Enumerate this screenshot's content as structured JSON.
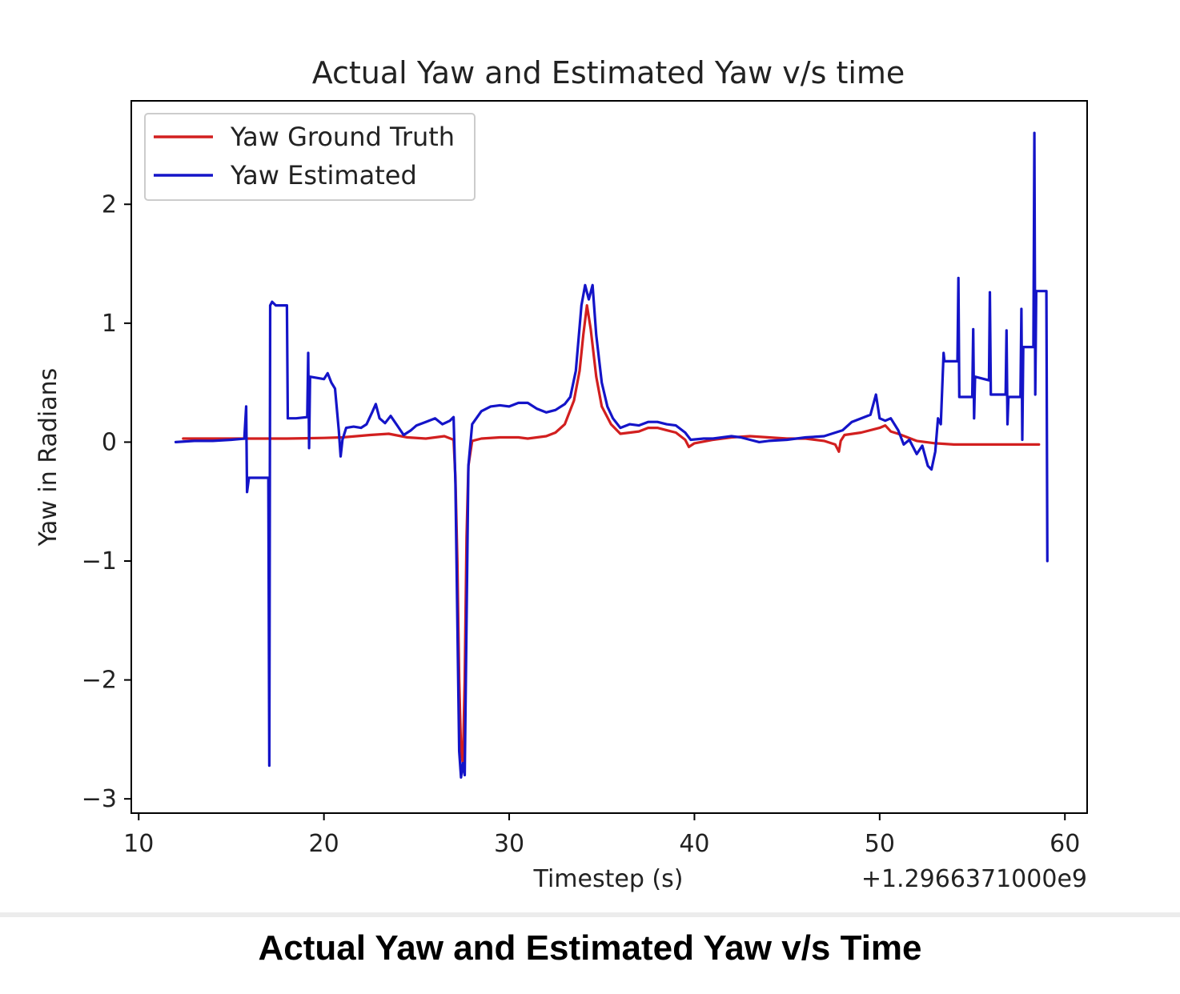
{
  "caption": "Actual Yaw and Estimated Yaw v/s Time",
  "chart_data": {
    "type": "line",
    "title": "Actual Yaw and Estimated Yaw v/s time",
    "xlabel": "Timestep (s)",
    "ylabel": "Yaw in Radians",
    "x_offset_label": "+1.2966371000e9",
    "xlim": [
      9.6,
      61.2
    ],
    "ylim": [
      -3.12,
      2.87
    ],
    "xticks": [
      10,
      20,
      30,
      40,
      50,
      60
    ],
    "yticks": [
      -3,
      -2,
      -1,
      0,
      1,
      2
    ],
    "xtick_labels": [
      "10",
      "20",
      "30",
      "40",
      "50",
      "60"
    ],
    "ytick_labels": [
      "−3",
      "−2",
      "−1",
      "0",
      "1",
      "2"
    ],
    "grid": false,
    "legend_position": "top-left",
    "series": [
      {
        "name": "Yaw Ground Truth",
        "color": "#d21f1f",
        "points": [
          [
            12.4,
            0.03
          ],
          [
            14,
            0.03
          ],
          [
            16,
            0.03
          ],
          [
            18,
            0.03
          ],
          [
            20,
            0.035
          ],
          [
            21,
            0.04
          ],
          [
            22.5,
            0.06
          ],
          [
            23.5,
            0.07
          ],
          [
            24.5,
            0.04
          ],
          [
            25.5,
            0.03
          ],
          [
            26.5,
            0.05
          ],
          [
            27,
            0.02
          ],
          [
            27.1,
            -0.3
          ],
          [
            27.2,
            -1.0
          ],
          [
            27.3,
            -2.0
          ],
          [
            27.4,
            -2.6
          ],
          [
            27.5,
            -2.7
          ],
          [
            27.6,
            -2.0
          ],
          [
            27.7,
            -0.8
          ],
          [
            27.8,
            -0.2
          ],
          [
            28,
            0.01
          ],
          [
            28.5,
            0.03
          ],
          [
            29.5,
            0.04
          ],
          [
            30.5,
            0.04
          ],
          [
            31,
            0.03
          ],
          [
            32,
            0.05
          ],
          [
            32.5,
            0.08
          ],
          [
            33,
            0.15
          ],
          [
            33.5,
            0.35
          ],
          [
            33.8,
            0.6
          ],
          [
            34,
            0.9
          ],
          [
            34.2,
            1.15
          ],
          [
            34.4,
            0.95
          ],
          [
            34.7,
            0.55
          ],
          [
            35,
            0.3
          ],
          [
            35.5,
            0.15
          ],
          [
            36,
            0.07
          ],
          [
            37,
            0.09
          ],
          [
            37.5,
            0.12
          ],
          [
            38,
            0.12
          ],
          [
            38.5,
            0.1
          ],
          [
            39,
            0.08
          ],
          [
            39.5,
            0.02
          ],
          [
            39.7,
            -0.04
          ],
          [
            40,
            -0.01
          ],
          [
            41,
            0.02
          ],
          [
            42,
            0.04
          ],
          [
            43,
            0.05
          ],
          [
            44,
            0.04
          ],
          [
            45,
            0.03
          ],
          [
            46,
            0.03
          ],
          [
            47,
            0.01
          ],
          [
            47.6,
            -0.02
          ],
          [
            47.8,
            -0.08
          ],
          [
            47.9,
            0.01
          ],
          [
            48.1,
            0.06
          ],
          [
            49,
            0.08
          ],
          [
            50,
            0.12
          ],
          [
            50.3,
            0.14
          ],
          [
            50.6,
            0.09
          ],
          [
            51,
            0.07
          ],
          [
            52,
            0.01
          ],
          [
            53,
            -0.01
          ],
          [
            54,
            -0.02
          ],
          [
            56,
            -0.02
          ],
          [
            58,
            -0.02
          ],
          [
            58.6,
            -0.02
          ]
        ]
      },
      {
        "name": "Yaw Estimated",
        "color": "#1414c8",
        "points": [
          [
            12,
            0.0
          ],
          [
            13,
            0.01
          ],
          [
            14,
            0.01
          ],
          [
            15,
            0.02
          ],
          [
            15.7,
            0.03
          ],
          [
            15.8,
            0.3
          ],
          [
            15.85,
            -0.42
          ],
          [
            15.95,
            -0.3
          ],
          [
            17,
            -0.3
          ],
          [
            17.05,
            -2.72
          ],
          [
            17.1,
            1.15
          ],
          [
            17.2,
            1.18
          ],
          [
            17.4,
            1.15
          ],
          [
            18,
            1.15
          ],
          [
            18.05,
            0.2
          ],
          [
            18.5,
            0.2
          ],
          [
            19.1,
            0.21
          ],
          [
            19.15,
            0.75
          ],
          [
            19.2,
            -0.05
          ],
          [
            19.25,
            0.55
          ],
          [
            20,
            0.53
          ],
          [
            20.2,
            0.58
          ],
          [
            20.4,
            0.5
          ],
          [
            20.6,
            0.45
          ],
          [
            20.8,
            0.1
          ],
          [
            20.9,
            -0.12
          ],
          [
            21,
            0.02
          ],
          [
            21.2,
            0.12
          ],
          [
            21.6,
            0.13
          ],
          [
            22,
            0.12
          ],
          [
            22.3,
            0.15
          ],
          [
            22.6,
            0.25
          ],
          [
            22.8,
            0.32
          ],
          [
            23,
            0.2
          ],
          [
            23.3,
            0.16
          ],
          [
            23.6,
            0.22
          ],
          [
            24,
            0.13
          ],
          [
            24.3,
            0.06
          ],
          [
            24.7,
            0.1
          ],
          [
            25,
            0.14
          ],
          [
            25.5,
            0.17
          ],
          [
            26,
            0.2
          ],
          [
            26.4,
            0.15
          ],
          [
            26.8,
            0.18
          ],
          [
            27,
            0.21
          ],
          [
            27.1,
            -0.35
          ],
          [
            27.2,
            -1.5
          ],
          [
            27.3,
            -2.6
          ],
          [
            27.4,
            -2.82
          ],
          [
            27.5,
            -2.7
          ],
          [
            27.6,
            -2.8
          ],
          [
            27.7,
            -1.5
          ],
          [
            27.8,
            -0.2
          ],
          [
            28,
            0.15
          ],
          [
            28.5,
            0.26
          ],
          [
            29,
            0.3
          ],
          [
            29.5,
            0.31
          ],
          [
            30,
            0.3
          ],
          [
            30.5,
            0.33
          ],
          [
            31,
            0.33
          ],
          [
            31.5,
            0.28
          ],
          [
            32,
            0.25
          ],
          [
            32.5,
            0.27
          ],
          [
            33,
            0.32
          ],
          [
            33.3,
            0.38
          ],
          [
            33.6,
            0.6
          ],
          [
            33.9,
            1.15
          ],
          [
            34.1,
            1.32
          ],
          [
            34.3,
            1.2
          ],
          [
            34.5,
            1.32
          ],
          [
            34.7,
            0.9
          ],
          [
            35,
            0.5
          ],
          [
            35.3,
            0.3
          ],
          [
            35.6,
            0.2
          ],
          [
            36,
            0.12
          ],
          [
            36.5,
            0.15
          ],
          [
            37,
            0.14
          ],
          [
            37.5,
            0.17
          ],
          [
            38,
            0.17
          ],
          [
            38.5,
            0.15
          ],
          [
            39,
            0.14
          ],
          [
            39.5,
            0.08
          ],
          [
            39.8,
            0.02
          ],
          [
            40.5,
            0.03
          ],
          [
            41,
            0.03
          ],
          [
            42,
            0.05
          ],
          [
            42.5,
            0.04
          ],
          [
            43,
            0.02
          ],
          [
            43.5,
            0.0
          ],
          [
            44,
            0.01
          ],
          [
            45,
            0.02
          ],
          [
            46,
            0.04
          ],
          [
            47,
            0.05
          ],
          [
            48,
            0.1
          ],
          [
            48.5,
            0.17
          ],
          [
            49,
            0.2
          ],
          [
            49.5,
            0.23
          ],
          [
            49.8,
            0.4
          ],
          [
            50,
            0.2
          ],
          [
            50.3,
            0.18
          ],
          [
            50.6,
            0.2
          ],
          [
            51,
            0.1
          ],
          [
            51.3,
            -0.02
          ],
          [
            51.6,
            0.02
          ],
          [
            52,
            -0.1
          ],
          [
            52.3,
            -0.03
          ],
          [
            52.6,
            -0.2
          ],
          [
            52.8,
            -0.23
          ],
          [
            53,
            -0.08
          ],
          [
            53.15,
            0.2
          ],
          [
            53.3,
            0.15
          ],
          [
            53.45,
            0.75
          ],
          [
            53.5,
            0.68
          ],
          [
            54.2,
            0.68
          ],
          [
            54.25,
            1.38
          ],
          [
            54.3,
            0.38
          ],
          [
            55,
            0.38
          ],
          [
            55.05,
            0.95
          ],
          [
            55.1,
            0.2
          ],
          [
            55.15,
            0.55
          ],
          [
            55.9,
            0.52
          ],
          [
            55.95,
            1.26
          ],
          [
            56,
            0.4
          ],
          [
            56.8,
            0.4
          ],
          [
            56.85,
            0.94
          ],
          [
            56.9,
            0.15
          ],
          [
            56.95,
            0.38
          ],
          [
            57.6,
            0.38
          ],
          [
            57.65,
            1.12
          ],
          [
            57.7,
            0.02
          ],
          [
            57.75,
            0.8
          ],
          [
            58.3,
            0.8
          ],
          [
            58.35,
            2.6
          ],
          [
            58.4,
            0.4
          ],
          [
            58.45,
            1.27
          ],
          [
            59,
            1.27
          ],
          [
            59.05,
            -1.0
          ]
        ]
      }
    ]
  }
}
